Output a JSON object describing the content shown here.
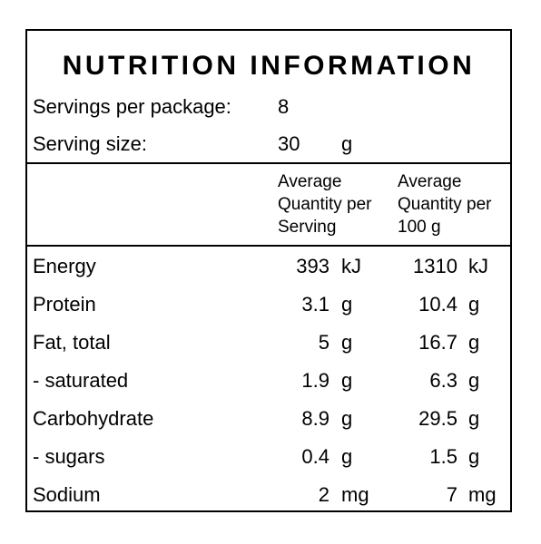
{
  "panel": {
    "title": "NUTRITION INFORMATION",
    "servings_label": "Servings per package:",
    "servings_value": "8",
    "serving_size_label": "Serving size:",
    "serving_size_value": "30",
    "serving_size_unit": "g"
  },
  "table": {
    "header_per_serving": [
      "Average",
      "Quantity per",
      "Serving"
    ],
    "header_per_100g": [
      "Average",
      "Quantity per",
      "100 g"
    ],
    "rows": [
      {
        "nutrient": "Energy",
        "per_serving": "393",
        "per_serving_unit": "kJ",
        "per_100g": "1310",
        "per_100g_unit": "kJ"
      },
      {
        "nutrient": "Protein",
        "per_serving": "3.1",
        "per_serving_unit": "g",
        "per_100g": "10.4",
        "per_100g_unit": "g"
      },
      {
        "nutrient": "Fat, total",
        "per_serving": "5",
        "per_serving_unit": "g",
        "per_100g": "16.7",
        "per_100g_unit": "g"
      },
      {
        "nutrient": "- saturated",
        "per_serving": "1.9",
        "per_serving_unit": "g",
        "per_100g": "6.3",
        "per_100g_unit": "g"
      },
      {
        "nutrient": "Carbohydrate",
        "per_serving": "8.9",
        "per_serving_unit": "g",
        "per_100g": "29.5",
        "per_100g_unit": "g"
      },
      {
        "nutrient": "- sugars",
        "per_serving": "0.4",
        "per_serving_unit": "g",
        "per_100g": "1.5",
        "per_100g_unit": "g"
      },
      {
        "nutrient": "Sodium",
        "per_serving": "2",
        "per_serving_unit": "mg",
        "per_100g": "7",
        "per_100g_unit": "mg"
      }
    ]
  }
}
